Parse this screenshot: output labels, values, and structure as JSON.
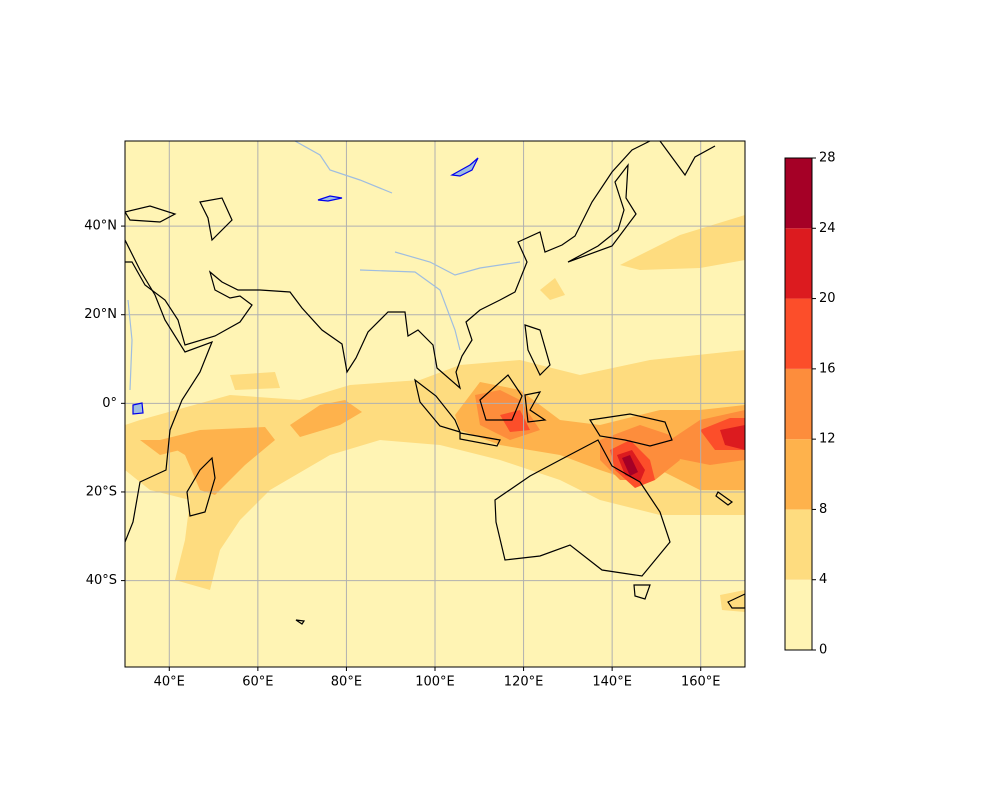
{
  "chart_data": {
    "type": "contour-map",
    "xlim": [
      30,
      170
    ],
    "ylim": [
      -59.5,
      59.2
    ],
    "xticks": [
      {
        "value": 40,
        "label": "40°E"
      },
      {
        "value": 60,
        "label": "60°E"
      },
      {
        "value": 80,
        "label": "80°E"
      },
      {
        "value": 100,
        "label": "100°E"
      },
      {
        "value": 120,
        "label": "120°E"
      },
      {
        "value": 140,
        "label": "140°E"
      },
      {
        "value": 160,
        "label": "160°E"
      }
    ],
    "yticks": [
      {
        "value": 40,
        "label": "40°N"
      },
      {
        "value": 20,
        "label": "20°N"
      },
      {
        "value": 0,
        "label": "0°"
      },
      {
        "value": -20,
        "label": "20°S"
      },
      {
        "value": -40,
        "label": "40°S"
      }
    ],
    "grid": true,
    "colorbar": {
      "levels": [
        0,
        4,
        8,
        12,
        16,
        20,
        24,
        28
      ],
      "colors": [
        "#fff4b4",
        "#fedc7f",
        "#feb24c",
        "#fd8d3c",
        "#fc4e2a",
        "#dc1b1f",
        "#a50026"
      ]
    }
  }
}
